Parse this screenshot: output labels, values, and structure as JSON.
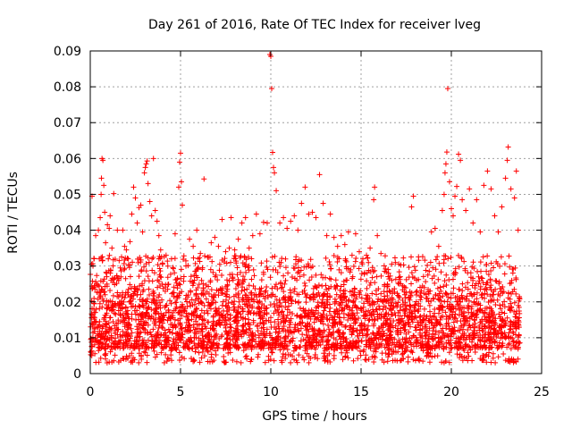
{
  "chart_data": {
    "type": "scatter",
    "title": "Day 261 of 2016, Rate Of TEC Index for receiver lveg",
    "xlabel": "GPS time / hours",
    "ylabel": "ROTI / TECUs",
    "xlim": [
      0,
      25
    ],
    "ylim": [
      0,
      0.09
    ],
    "x_ticks": [
      0,
      5,
      10,
      15,
      20,
      25
    ],
    "x_tick_labels": [
      "0",
      "5",
      "10",
      "15",
      "20",
      "25"
    ],
    "y_ticks": [
      0,
      0.01,
      0.02,
      0.03,
      0.04,
      0.05,
      0.06,
      0.07,
      0.08,
      0.09
    ],
    "y_tick_labels": [
      "0",
      "0.01",
      "0.02",
      "0.03",
      "0.04",
      "0.05",
      "0.06",
      "0.07",
      "0.08",
      "0.09"
    ],
    "grid": true,
    "marker": "+",
    "color": "#ff0000",
    "series": [
      {
        "name": "ROTI",
        "points": [
          [
            0.1,
            0.0495
          ],
          [
            0.15,
            0.03
          ],
          [
            0.2,
            0.018
          ],
          [
            0.3,
            0.0385
          ],
          [
            0.35,
            0.025
          ],
          [
            0.4,
            0.0105
          ],
          [
            0.45,
            0.04
          ],
          [
            0.5,
            0.032
          ],
          [
            0.55,
            0.0435
          ],
          [
            0.6,
            0.05
          ],
          [
            0.62,
            0.0545
          ],
          [
            0.65,
            0.06
          ],
          [
            0.7,
            0.0595
          ],
          [
            0.75,
            0.0525
          ],
          [
            0.8,
            0.045
          ],
          [
            0.85,
            0.0365
          ],
          [
            0.9,
            0.028
          ],
          [
            0.95,
            0.0415
          ],
          [
            1.0,
            0.032
          ],
          [
            1.05,
            0.0405
          ],
          [
            1.1,
            0.044
          ],
          [
            1.2,
            0.035
          ],
          [
            1.3,
            0.0502
          ],
          [
            1.35,
            0.0248
          ],
          [
            1.5,
            0.04
          ],
          [
            1.6,
            0.0315
          ],
          [
            1.7,
            0.027
          ],
          [
            1.8,
            0.04
          ],
          [
            1.9,
            0.0355
          ],
          [
            2.0,
            0.0345
          ],
          [
            2.1,
            0.032
          ],
          [
            2.2,
            0.0368
          ],
          [
            2.3,
            0.0445
          ],
          [
            2.4,
            0.052
          ],
          [
            2.5,
            0.049
          ],
          [
            2.6,
            0.042
          ],
          [
            2.7,
            0.0463
          ],
          [
            2.8,
            0.047
          ],
          [
            2.9,
            0.0395
          ],
          [
            3.0,
            0.056
          ],
          [
            3.05,
            0.0575
          ],
          [
            3.1,
            0.0585
          ],
          [
            3.15,
            0.0593
          ],
          [
            3.2,
            0.053
          ],
          [
            3.3,
            0.048
          ],
          [
            3.4,
            0.044
          ],
          [
            3.5,
            0.06
          ],
          [
            3.6,
            0.0455
          ],
          [
            3.7,
            0.0425
          ],
          [
            3.8,
            0.0385
          ],
          [
            3.9,
            0.0345
          ],
          [
            4.0,
            0.0305
          ],
          [
            4.2,
            0.033
          ],
          [
            4.5,
            0.032
          ],
          [
            4.7,
            0.039
          ],
          [
            4.9,
            0.052
          ],
          [
            4.95,
            0.059
          ],
          [
            5.0,
            0.0615
          ],
          [
            5.05,
            0.0535
          ],
          [
            5.1,
            0.047
          ],
          [
            5.3,
            0.03
          ],
          [
            5.5,
            0.0375
          ],
          [
            5.7,
            0.0355
          ],
          [
            5.9,
            0.04
          ],
          [
            6.1,
            0.0335
          ],
          [
            6.3,
            0.0543
          ],
          [
            6.5,
            0.0325
          ],
          [
            6.7,
            0.0365
          ],
          [
            6.9,
            0.038
          ],
          [
            7.1,
            0.0355
          ],
          [
            7.3,
            0.043
          ],
          [
            7.5,
            0.034
          ],
          [
            7.7,
            0.035
          ],
          [
            7.8,
            0.0435
          ],
          [
            8.0,
            0.0345
          ],
          [
            8.2,
            0.0375
          ],
          [
            8.4,
            0.042
          ],
          [
            8.6,
            0.0435
          ],
          [
            8.8,
            0.035
          ],
          [
            9.0,
            0.0385
          ],
          [
            9.2,
            0.0445
          ],
          [
            9.4,
            0.039
          ],
          [
            9.6,
            0.0422
          ],
          [
            9.8,
            0.042
          ],
          [
            9.95,
            0.089
          ],
          [
            10.0,
            0.0885
          ],
          [
            10.05,
            0.0795
          ],
          [
            10.1,
            0.0617
          ],
          [
            10.15,
            0.0575
          ],
          [
            10.2,
            0.056
          ],
          [
            10.3,
            0.051
          ],
          [
            10.5,
            0.042
          ],
          [
            10.7,
            0.0435
          ],
          [
            10.9,
            0.0405
          ],
          [
            11.1,
            0.0425
          ],
          [
            11.3,
            0.044
          ],
          [
            11.5,
            0.04
          ],
          [
            11.7,
            0.0475
          ],
          [
            11.9,
            0.052
          ],
          [
            12.1,
            0.0445
          ],
          [
            12.3,
            0.045
          ],
          [
            12.5,
            0.0435
          ],
          [
            12.7,
            0.0555
          ],
          [
            12.9,
            0.0475
          ],
          [
            13.1,
            0.0385
          ],
          [
            13.3,
            0.0445
          ],
          [
            13.5,
            0.038
          ],
          [
            13.7,
            0.0355
          ],
          [
            13.9,
            0.0385
          ],
          [
            14.1,
            0.036
          ],
          [
            14.3,
            0.0395
          ],
          [
            14.5,
            0.033
          ],
          [
            14.7,
            0.039
          ],
          [
            14.9,
            0.034
          ],
          [
            15.1,
            0.032
          ],
          [
            15.3,
            0.033
          ],
          [
            15.5,
            0.035
          ],
          [
            15.7,
            0.0485
          ],
          [
            15.75,
            0.052
          ],
          [
            15.9,
            0.0385
          ],
          [
            16.1,
            0.0335
          ],
          [
            16.3,
            0.0285
          ],
          [
            16.5,
            0.029
          ],
          [
            16.7,
            0.026
          ],
          [
            16.9,
            0.031
          ],
          [
            17.1,
            0.025
          ],
          [
            17.3,
            0.0245
          ],
          [
            17.5,
            0.0225
          ],
          [
            17.7,
            0.0205
          ],
          [
            17.8,
            0.0465
          ],
          [
            17.9,
            0.0495
          ],
          [
            18.1,
            0.023
          ],
          [
            18.3,
            0.0225
          ],
          [
            18.5,
            0.024
          ],
          [
            18.7,
            0.0275
          ],
          [
            18.9,
            0.0395
          ],
          [
            19.1,
            0.0405
          ],
          [
            19.3,
            0.0355
          ],
          [
            19.5,
            0.0455
          ],
          [
            19.6,
            0.05
          ],
          [
            19.65,
            0.056
          ],
          [
            19.7,
            0.0585
          ],
          [
            19.75,
            0.0618
          ],
          [
            19.8,
            0.0795
          ],
          [
            19.9,
            0.0535
          ],
          [
            20.0,
            0.046
          ],
          [
            20.1,
            0.044
          ],
          [
            20.2,
            0.0495
          ],
          [
            20.3,
            0.0522
          ],
          [
            20.4,
            0.0612
          ],
          [
            20.5,
            0.0595
          ],
          [
            20.6,
            0.0485
          ],
          [
            20.8,
            0.0455
          ],
          [
            21.0,
            0.0515
          ],
          [
            21.2,
            0.042
          ],
          [
            21.4,
            0.0485
          ],
          [
            21.6,
            0.0395
          ],
          [
            21.8,
            0.0525
          ],
          [
            22.0,
            0.0565
          ],
          [
            22.2,
            0.0515
          ],
          [
            22.4,
            0.044
          ],
          [
            22.6,
            0.0395
          ],
          [
            22.8,
            0.0465
          ],
          [
            23.0,
            0.0545
          ],
          [
            23.1,
            0.0595
          ],
          [
            23.15,
            0.0632
          ],
          [
            23.3,
            0.0515
          ],
          [
            23.5,
            0.049
          ],
          [
            23.6,
            0.0565
          ],
          [
            23.7,
            0.04
          ]
        ]
      }
    ],
    "dense_band": {
      "description": "bulk of observations plotted as dense crosses between these ROTI values over the full time range",
      "x_range": [
        0,
        23.8
      ],
      "y_floor": [
        0.003,
        0.007
      ],
      "y_core": [
        0.007,
        0.022
      ],
      "y_upper": [
        0.022,
        0.033
      ],
      "count_core": 2600,
      "count_upper": 700,
      "count_floor": 300
    }
  }
}
